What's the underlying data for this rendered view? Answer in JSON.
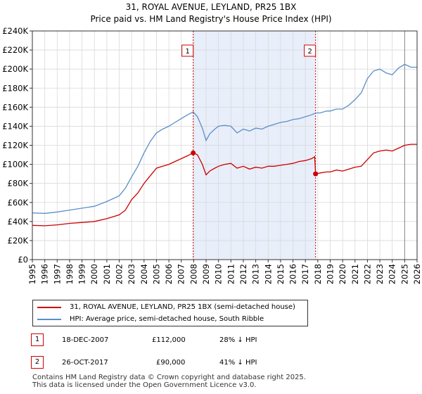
{
  "title": {
    "line1": "31, ROYAL AVENUE, LEYLAND, PR25 1BX",
    "line2": "Price paid vs. HM Land Registry's House Price Index (HPI)"
  },
  "colors": {
    "property": "#cc0000",
    "hpi": "#5b8ec9",
    "shade": "#e8eefa",
    "grid": "#d9d9d9"
  },
  "legend": {
    "property_label": "31, ROYAL AVENUE, LEYLAND, PR25 1BX (semi-detached house)",
    "hpi_label": "HPI: Average price, semi-detached house, South Ribble"
  },
  "transactions": [
    {
      "num": "1",
      "date": "18-DEC-2007",
      "price": "£112,000",
      "hpi_diff": "28% ↓ HPI"
    },
    {
      "num": "2",
      "date": "26-OCT-2017",
      "price": "£90,000",
      "hpi_diff": "41% ↓ HPI"
    }
  ],
  "footer": {
    "line1": "Contains HM Land Registry data © Crown copyright and database right 2025.",
    "line2": "This data is licensed under the Open Government Licence v3.0."
  },
  "chart_data": {
    "type": "line",
    "title": "31, ROYAL AVENUE, LEYLAND, PR25 1BX — Price paid vs. HM Land Registry's House Price Index (HPI)",
    "xlabel": "",
    "ylabel": "",
    "xlim": [
      1995,
      2026
    ],
    "ylim": [
      0,
      240000
    ],
    "x_ticks": [
      "1995",
      "1996",
      "1997",
      "1998",
      "1999",
      "2000",
      "2001",
      "2002",
      "2003",
      "2004",
      "2005",
      "2006",
      "2007",
      "2008",
      "2009",
      "2010",
      "2011",
      "2012",
      "2013",
      "2014",
      "2015",
      "2016",
      "2017",
      "2018",
      "2019",
      "2020",
      "2021",
      "2022",
      "2023",
      "2024",
      "2025",
      "2026"
    ],
    "y_ticks": [
      {
        "value": 0,
        "label": "£0"
      },
      {
        "value": 20000,
        "label": "£20K"
      },
      {
        "value": 40000,
        "label": "£40K"
      },
      {
        "value": 60000,
        "label": "£60K"
      },
      {
        "value": 80000,
        "label": "£80K"
      },
      {
        "value": 100000,
        "label": "£100K"
      },
      {
        "value": 120000,
        "label": "£120K"
      },
      {
        "value": 140000,
        "label": "£140K"
      },
      {
        "value": 160000,
        "label": "£160K"
      },
      {
        "value": 180000,
        "label": "£180K"
      },
      {
        "value": 200000,
        "label": "£200K"
      },
      {
        "value": 220000,
        "label": "£220K"
      },
      {
        "value": 240000,
        "label": "£240K"
      }
    ],
    "grid": true,
    "legend_position": "below",
    "shaded_period": [
      2007.96,
      2017.82
    ],
    "projection_start": 2025.0,
    "series": [
      {
        "name": "31, ROYAL AVENUE, LEYLAND, PR25 1BX (semi-detached house)",
        "x": [
          1995.0,
          1996.0,
          1997.0,
          1998.0,
          1999.0,
          2000.0,
          2001.0,
          2002.0,
          2002.5,
          2003.0,
          2003.5,
          2004.0,
          2004.5,
          2005.0,
          2005.5,
          2006.0,
          2006.5,
          2007.0,
          2007.5,
          2007.96,
          2008.3,
          2008.7,
          2009.0,
          2009.3,
          2009.7,
          2010.0,
          2010.5,
          2011.0,
          2011.5,
          2012.0,
          2012.5,
          2013.0,
          2013.5,
          2014.0,
          2014.5,
          2015.0,
          2015.5,
          2016.0,
          2016.5,
          2017.0,
          2017.5,
          2017.75,
          2017.82,
          2018.2,
          2018.7,
          2019.0,
          2019.5,
          2020.0,
          2020.5,
          2021.0,
          2021.5,
          2022.0,
          2022.5,
          2023.0,
          2023.5,
          2024.0,
          2024.5,
          2025.0,
          2025.5,
          2026.0
        ],
        "values": [
          36000,
          35500,
          36500,
          38000,
          39000,
          40000,
          43000,
          47000,
          52000,
          63000,
          70000,
          80000,
          88000,
          96000,
          98000,
          100000,
          103000,
          106000,
          109000,
          112000,
          110000,
          100000,
          89000,
          93000,
          96000,
          98000,
          100000,
          101000,
          96000,
          98000,
          95000,
          97000,
          96000,
          98000,
          98000,
          99000,
          100000,
          101000,
          103000,
          104000,
          106000,
          108000,
          90000,
          91000,
          92000,
          92000,
          94000,
          93000,
          95000,
          97000,
          98000,
          105000,
          112000,
          114000,
          115000,
          114000,
          117000,
          120000,
          121000,
          121000
        ]
      },
      {
        "name": "HPI: Average price, semi-detached house, South Ribble",
        "x": [
          1995.0,
          1996.0,
          1997.0,
          1998.0,
          1999.0,
          2000.0,
          2001.0,
          2002.0,
          2002.5,
          2003.0,
          2003.5,
          2004.0,
          2004.5,
          2005.0,
          2005.5,
          2006.0,
          2006.5,
          2007.0,
          2007.5,
          2007.96,
          2008.3,
          2008.7,
          2009.0,
          2009.3,
          2009.7,
          2010.0,
          2010.5,
          2011.0,
          2011.5,
          2012.0,
          2012.5,
          2013.0,
          2013.5,
          2014.0,
          2014.5,
          2015.0,
          2015.5,
          2016.0,
          2016.5,
          2017.0,
          2017.5,
          2017.82,
          2018.2,
          2018.7,
          2019.0,
          2019.5,
          2020.0,
          2020.5,
          2021.0,
          2021.5,
          2022.0,
          2022.5,
          2023.0,
          2023.5,
          2024.0,
          2024.5,
          2025.0,
          2025.5,
          2026.0
        ],
        "values": [
          49000,
          48500,
          50000,
          52000,
          54000,
          56000,
          61000,
          67000,
          75000,
          87000,
          98000,
          112000,
          124000,
          133000,
          137000,
          140000,
          144000,
          148000,
          152000,
          155000,
          150000,
          138000,
          125000,
          132000,
          137000,
          140000,
          141000,
          140000,
          133000,
          137000,
          135000,
          138000,
          137000,
          140000,
          142000,
          144000,
          145000,
          147000,
          148000,
          150000,
          152000,
          154000,
          154000,
          156000,
          156000,
          158000,
          158000,
          162000,
          168000,
          175000,
          190000,
          198000,
          200000,
          196000,
          194000,
          201000,
          205000,
          202000,
          202000
        ]
      }
    ],
    "annotations": [
      {
        "label": "1",
        "x": 2007.96,
        "y": 112000
      },
      {
        "label": "2",
        "x": 2017.82,
        "y": 90000
      }
    ]
  }
}
